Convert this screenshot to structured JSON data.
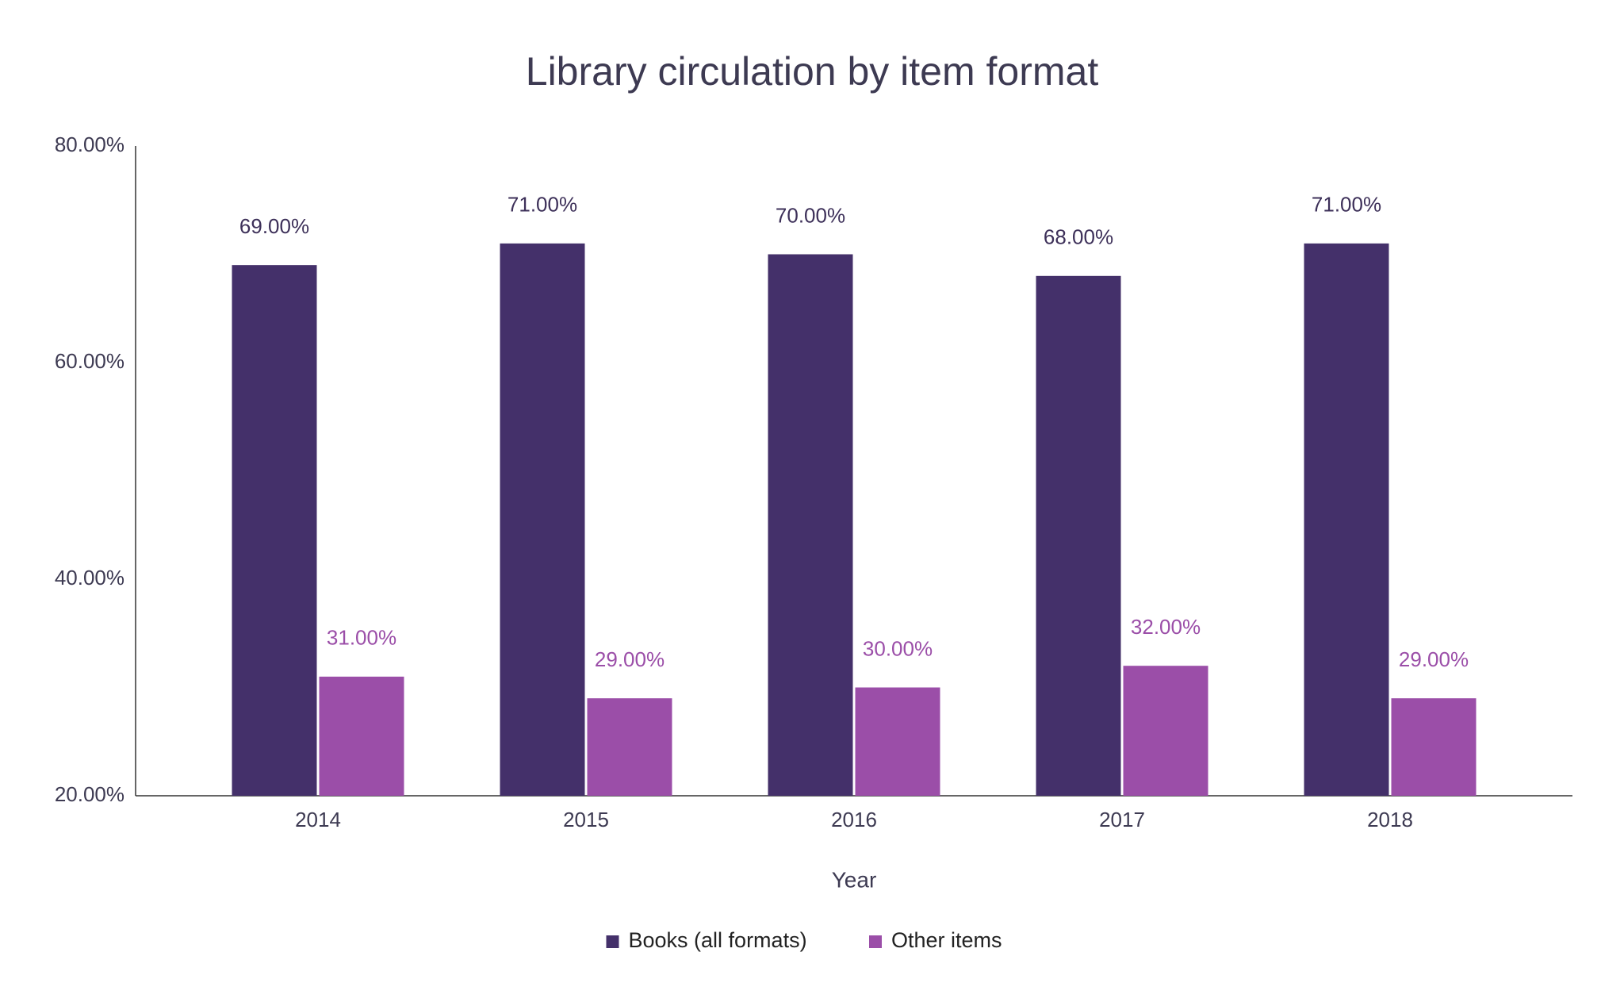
{
  "chart_data": {
    "type": "bar",
    "title": "Library circulation by item format",
    "x_label": "Year",
    "categories": [
      "2014",
      "2015",
      "2016",
      "2017",
      "2018"
    ],
    "series": [
      {
        "name": "Books (all formats)",
        "color": "#44306a",
        "label_color": "#3d3059",
        "values": [
          69,
          71,
          70,
          68,
          71
        ],
        "value_labels": [
          "69.00%",
          "71.00%",
          "70.00%",
          "68.00%",
          "71.00%"
        ]
      },
      {
        "name": "Other items",
        "color": "#9b4ea8",
        "label_color": "#9b4ea8",
        "values": [
          31,
          29,
          30,
          32,
          29
        ],
        "value_labels": [
          "31.00%",
          "29.00%",
          "30.00%",
          "32.00%",
          "29.00%"
        ]
      }
    ],
    "ylim": [
      20,
      80
    ],
    "yticks": [
      {
        "value": 20,
        "label": "20.00%"
      },
      {
        "value": 40,
        "label": "40.00%"
      },
      {
        "value": 60,
        "label": "60.00%"
      },
      {
        "value": 80,
        "label": "80.00%"
      }
    ],
    "grid": false,
    "legend": "bottom"
  }
}
